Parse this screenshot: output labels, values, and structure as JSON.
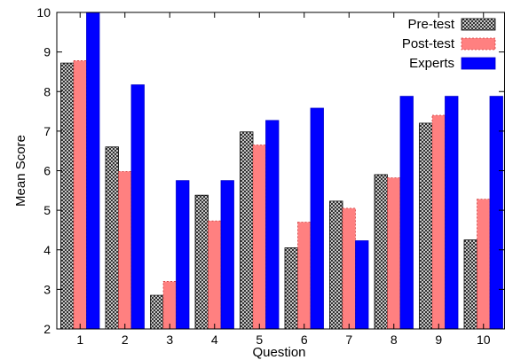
{
  "chart_data": {
    "type": "bar",
    "title": "",
    "xlabel": "Question",
    "ylabel": "Mean Score",
    "categories": [
      "1",
      "2",
      "3",
      "4",
      "5",
      "6",
      "7",
      "8",
      "9",
      "10"
    ],
    "ylim": [
      2,
      10
    ],
    "yticks": [
      "2",
      "3",
      "4",
      "5",
      "6",
      "7",
      "8",
      "9",
      "10"
    ],
    "grid": false,
    "legend_position": "top-right",
    "series": [
      {
        "name": "Pre-test",
        "color": "#444444",
        "pattern": "crosshatch",
        "values": [
          8.72,
          6.6,
          2.85,
          5.38,
          6.98,
          4.05,
          5.23,
          5.9,
          7.2,
          4.25
        ]
      },
      {
        "name": "Post-test",
        "color": "#ff8080",
        "pattern": "solid-dashed-border",
        "values": [
          8.78,
          5.98,
          3.2,
          4.73,
          6.65,
          4.7,
          5.05,
          5.82,
          7.4,
          5.28
        ]
      },
      {
        "name": "Experts",
        "color": "#0000ff",
        "pattern": "solid",
        "values": [
          10.0,
          8.17,
          5.75,
          5.75,
          7.27,
          7.58,
          4.23,
          7.88,
          7.88,
          7.88
        ]
      }
    ]
  }
}
